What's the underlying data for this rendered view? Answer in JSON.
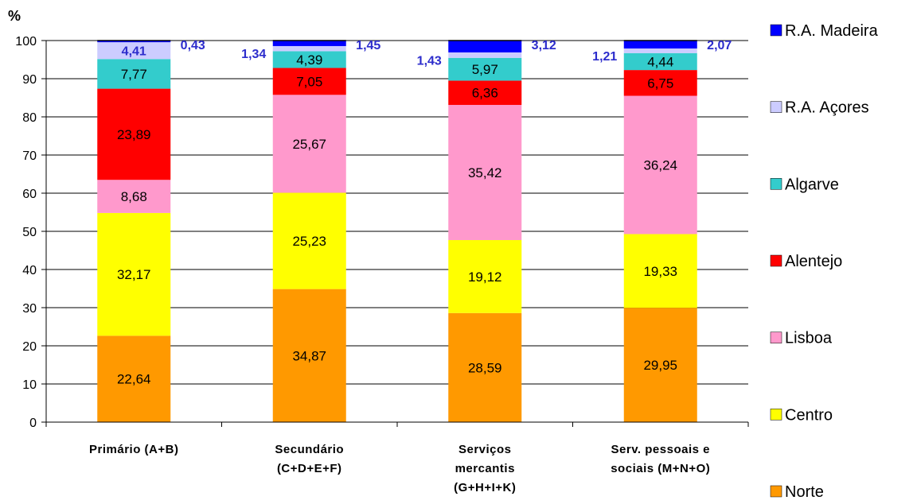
{
  "chart_data": {
    "type": "bar",
    "stacked": true,
    "unit_label": "%",
    "ylim": [
      0,
      100
    ],
    "yticks": [
      0,
      10,
      20,
      30,
      40,
      50,
      60,
      70,
      80,
      90,
      100
    ],
    "categories": [
      [
        "Primário (A+B)"
      ],
      [
        "Secundário",
        "(C+D+E+F)"
      ],
      [
        "Serviços",
        "mercantis",
        "(G+H+I+K)"
      ],
      [
        "Serv. pessoais e",
        "sociais (M+N+O)"
      ]
    ],
    "series": [
      {
        "name": "Norte",
        "color": "#ff9900",
        "values": [
          22.64,
          34.87,
          28.59,
          29.95
        ],
        "labels": [
          "22,64",
          "34,87",
          "28,59",
          "29,95"
        ]
      },
      {
        "name": "Centro",
        "color": "#ffff00",
        "values": [
          32.17,
          25.23,
          19.12,
          19.33
        ],
        "labels": [
          "32,17",
          "25,23",
          "19,12",
          "19,33"
        ]
      },
      {
        "name": "Lisboa",
        "color": "#ff99cc",
        "values": [
          8.68,
          25.67,
          35.42,
          36.24
        ],
        "labels": [
          "8,68",
          "25,67",
          "35,42",
          "36,24"
        ]
      },
      {
        "name": "Alentejo",
        "color": "#ff0000",
        "values": [
          23.89,
          7.05,
          6.36,
          6.75
        ],
        "labels": [
          "23,89",
          "7,05",
          "6,36",
          "6,75"
        ]
      },
      {
        "name": "Algarve",
        "color": "#33cccc",
        "values": [
          7.77,
          4.39,
          5.97,
          4.44
        ],
        "labels": [
          "7,77",
          "4,39",
          "5,97",
          "4,44"
        ]
      },
      {
        "name": "R.A. Açores",
        "color": "#ccccff",
        "values": [
          4.41,
          1.34,
          1.43,
          1.21
        ],
        "labels": [
          "4,41",
          "1,34",
          "1,43",
          "1,21"
        ]
      },
      {
        "name": "R.A. Madeira",
        "color": "#0000ff",
        "values": [
          0.43,
          1.45,
          3.12,
          2.07
        ],
        "labels": [
          "0,43",
          "1,45",
          "3,12",
          "2,07"
        ]
      }
    ],
    "legend_position": "right",
    "grid": true
  }
}
